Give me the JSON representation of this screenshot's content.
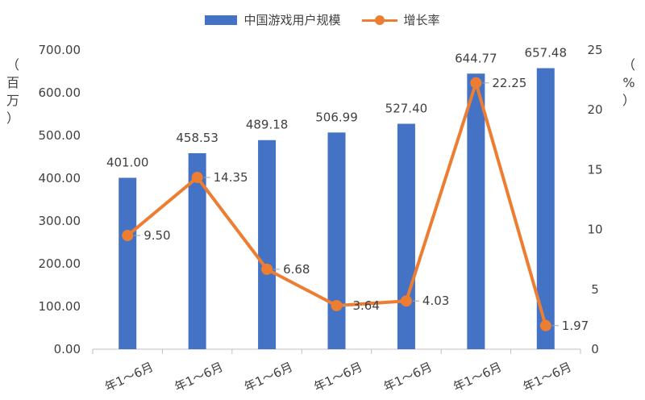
{
  "legend": {
    "bar_label": "中国游戏用户规模",
    "line_label": "增长率"
  },
  "axes": {
    "left_title_lines": [
      "（",
      "百",
      "万",
      "）"
    ],
    "right_title_lines": [
      "（",
      "%",
      "）"
    ]
  },
  "chart_data": {
    "type": "bar",
    "categories": [
      "年1～6月",
      "年1～6月",
      "年1～6月",
      "年1～6月",
      "年1～6月",
      "年1～6月",
      "年1～6月"
    ],
    "series": [
      {
        "name": "中国游戏用户规模",
        "type": "bar",
        "axis": "left",
        "values": [
          401.0,
          458.53,
          489.18,
          506.99,
          527.4,
          644.77,
          657.48
        ],
        "labels": [
          "401.00",
          "458.53",
          "489.18",
          "506.99",
          "527.40",
          "644.77",
          "657.48"
        ]
      },
      {
        "name": "增长率",
        "type": "line",
        "axis": "right",
        "values": [
          9.5,
          14.35,
          6.68,
          3.64,
          4.03,
          22.25,
          1.97
        ],
        "labels": [
          "9.50",
          "14.35",
          "6.68",
          "3.64",
          "4.03",
          "22.25",
          "1.97"
        ]
      }
    ],
    "y_left": {
      "min": 0,
      "max": 700,
      "ticks": [
        "0.00",
        "100.00",
        "200.00",
        "300.00",
        "400.00",
        "500.00",
        "600.00",
        "700.00"
      ]
    },
    "y_right": {
      "min": 0,
      "max": 25,
      "ticks": [
        "0",
        "5",
        "10",
        "15",
        "20",
        "25"
      ]
    },
    "grid": false,
    "legend_position": "top",
    "colors": {
      "bar": "#4472c4",
      "line": "#ed7d31",
      "text": "#404040",
      "axis": "#bfbfbf"
    }
  }
}
